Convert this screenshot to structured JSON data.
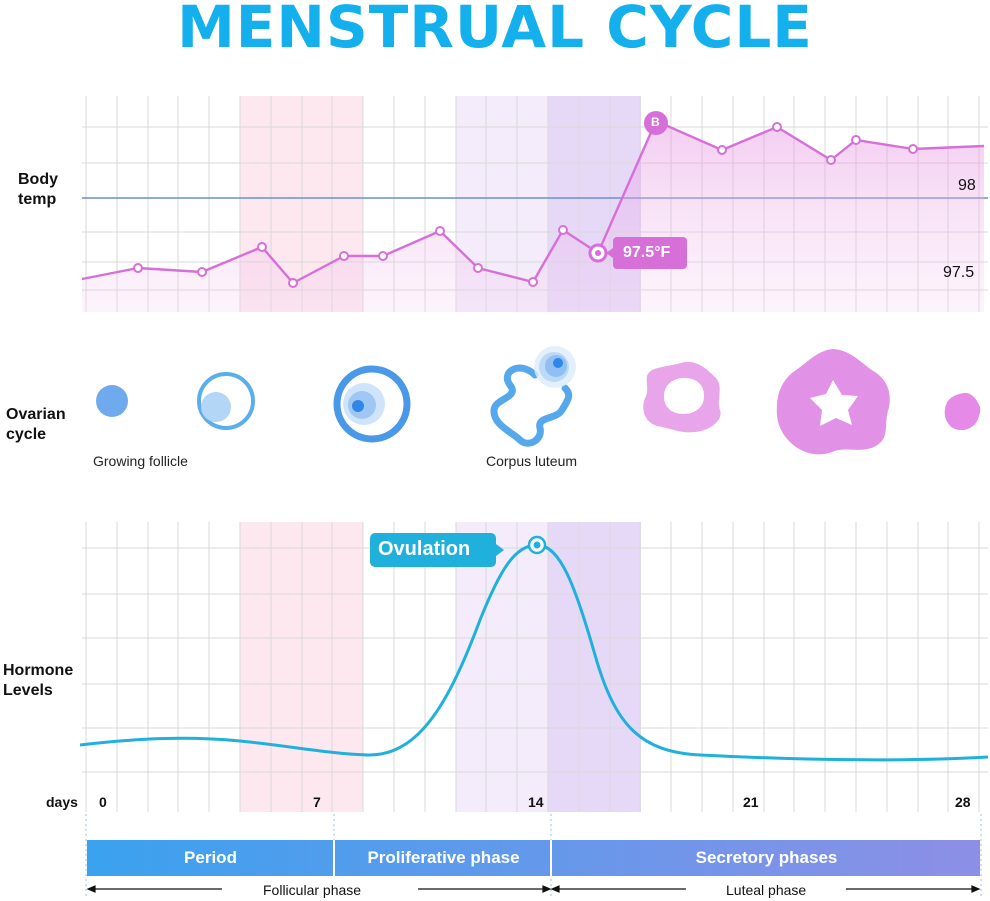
{
  "title": "MENSTRUAL CYCLE",
  "labels": {
    "body_temp": [
      "Body",
      "temp"
    ],
    "ovarian_cycle": [
      "Ovarian",
      "cycle"
    ],
    "hormone_levels": [
      "Hormone",
      "Levels"
    ],
    "days": "days"
  },
  "temperature": {
    "tick_98": "98",
    "tick_97_5": "97.5",
    "callout": "97.5°F",
    "marker": "B"
  },
  "ovarian": {
    "growing_follicle": "Growing follicle",
    "corpus_luteum": "Corpus luteum"
  },
  "hormone": {
    "ovulation": "Ovulation"
  },
  "day_ticks": [
    "0",
    "7",
    "14",
    "21",
    "28"
  ],
  "phases": {
    "period": "Period",
    "proliferative": "Proliferative phase",
    "secretory": "Secretory phases",
    "follicular": "Follicular phase",
    "luteal": "Luteal phase"
  },
  "colors": {
    "title": "#14b0ee",
    "temp_line": "#d877d8",
    "hormone_line": "#1fb0dc",
    "period_band": "#fde6ee",
    "proliferative_band": "#f3ebfb",
    "secretory_band": "#e8dcf8",
    "phase_bar_start": "#3da1ee",
    "phase_bar_end": "#8a8fe6"
  }
}
